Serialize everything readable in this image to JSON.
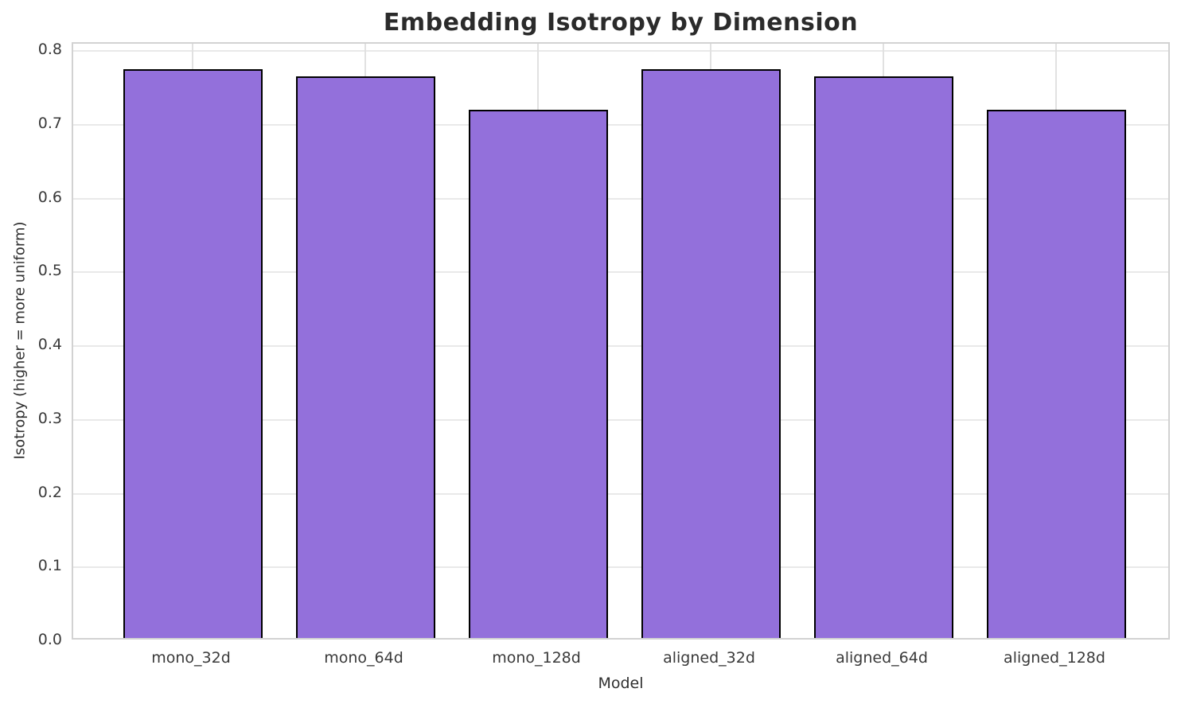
{
  "chart_data": {
    "type": "bar",
    "title": "Embedding Isotropy by Dimension",
    "xlabel": "Model",
    "ylabel": "Isotropy (higher = more uniform)",
    "categories": [
      "mono_32d",
      "mono_64d",
      "mono_128d",
      "aligned_32d",
      "aligned_64d",
      "aligned_128d"
    ],
    "values": [
      0.771,
      0.762,
      0.716,
      0.771,
      0.762,
      0.716
    ],
    "ylim": [
      0,
      0.81
    ],
    "yticks": [
      0.0,
      0.1,
      0.2,
      0.3,
      0.4,
      0.5,
      0.6,
      0.7,
      0.8
    ],
    "ytick_labels": [
      "0.0",
      "0.1",
      "0.2",
      "0.3",
      "0.4",
      "0.5",
      "0.6",
      "0.7",
      "0.8"
    ],
    "grid": true,
    "legend": "none",
    "bar_color": "#9370db",
    "bar_edge_color": "#000000"
  }
}
